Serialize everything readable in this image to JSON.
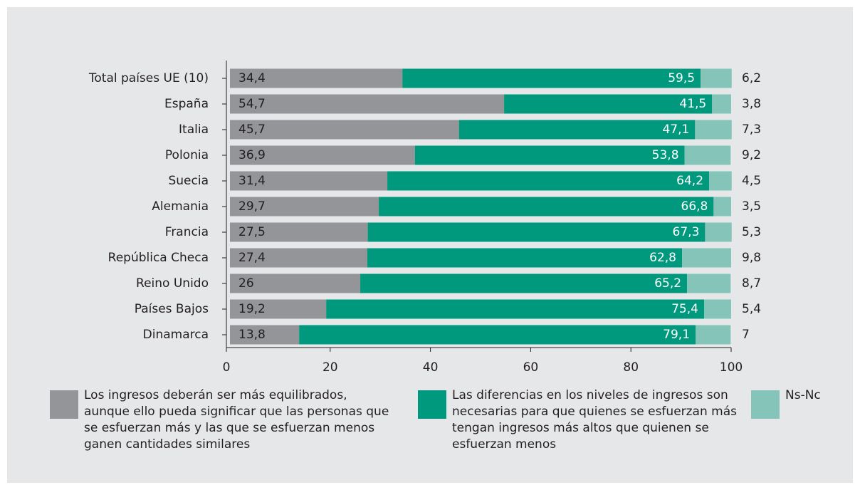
{
  "chart_data": {
    "type": "stacked-barh",
    "categories": [
      "Total países UE (10)",
      "España",
      "Italia",
      "Polonia",
      "Suecia",
      "Alemania",
      "Francia",
      "República Checa",
      "Reino Unido",
      "Países Bajos",
      "Dinamarca"
    ],
    "series": [
      {
        "name": "Los ingresos deberán ser más equilibrados, aunque ello pueda significar que las personas que se esfuerzan más y las que se esfuerzan menos ganen cantidades similares",
        "color": "#939598",
        "values": [
          34.4,
          54.7,
          45.7,
          36.9,
          31.4,
          29.7,
          27.5,
          27.4,
          26,
          19.2,
          13.8
        ],
        "value_labels": [
          "34,4",
          "54,7",
          "45,7",
          "36,9",
          "31,4",
          "29,7",
          "27,5",
          "27,4",
          "26",
          "19,2",
          "13,8"
        ]
      },
      {
        "name": "Las diferencias en los niveles de ingresos son necesarias para que quienes se esfuerzan más tengan ingresos más altos que quienen se esfuerzan menos",
        "color": "#00997d",
        "values": [
          59.5,
          41.5,
          47.1,
          53.8,
          64.2,
          66.8,
          67.3,
          62.8,
          65.2,
          75.4,
          79.1
        ],
        "value_labels": [
          "59,5",
          "41,5",
          "47,1",
          "53,8",
          "64,2",
          "66,8",
          "67,3",
          "62,8",
          "65,2",
          "75,4",
          "79,1"
        ]
      },
      {
        "name": "Ns-Nc",
        "color": "#85c4b9",
        "values": [
          6.2,
          3.8,
          7.3,
          9.2,
          4.5,
          3.5,
          5.3,
          9.8,
          8.7,
          5.4,
          7
        ],
        "value_labels": [
          "6,2",
          "3,8",
          "7,3",
          "9,2",
          "4,5",
          "3,5",
          "5,3",
          "9,8",
          "8,7",
          "5,4",
          "7"
        ]
      }
    ],
    "xlim": [
      0,
      100
    ],
    "xticks": [
      0,
      20,
      40,
      60,
      80,
      100
    ]
  }
}
